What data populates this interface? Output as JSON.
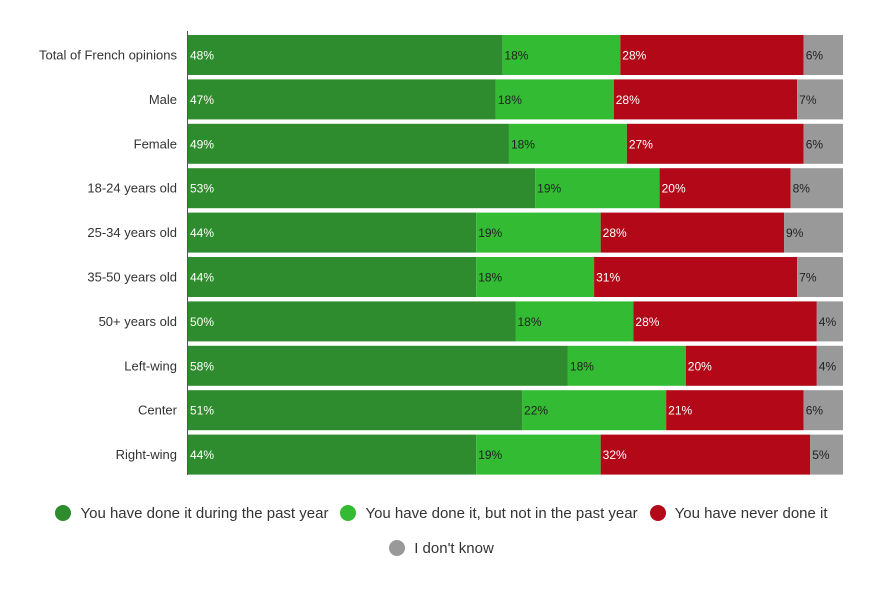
{
  "chart_data": {
    "type": "bar",
    "orientation": "horizontal",
    "stacked": true,
    "normalized": true,
    "categories": [
      "Total of French opinions",
      "Male",
      "Female",
      "18-24 years old",
      "25-34 years old",
      "35-50 years old",
      "50+ years old",
      "Left-wing",
      "Center",
      "Right-wing"
    ],
    "series": [
      {
        "name": "You have done it during the past year",
        "color": "#2e8b2e",
        "label_color": "#ffffff",
        "values": [
          48,
          47,
          49,
          53,
          44,
          44,
          50,
          58,
          51,
          44
        ]
      },
      {
        "name": "You have done it, but not in the past year",
        "color": "#33bb33",
        "label_color": "#222222",
        "values": [
          18,
          18,
          18,
          19,
          19,
          18,
          18,
          18,
          22,
          19
        ]
      },
      {
        "name": "You have never done it",
        "color": "#b30818",
        "label_color": "#ffffff",
        "values": [
          28,
          28,
          27,
          20,
          28,
          31,
          28,
          20,
          21,
          32
        ]
      },
      {
        "name": "I don't know",
        "color": "#999999",
        "label_color": "#222222",
        "values": [
          6,
          7,
          6,
          8,
          9,
          7,
          4,
          4,
          6,
          5
        ]
      }
    ],
    "value_suffix": "%",
    "legend_position": "bottom",
    "grid": false
  }
}
